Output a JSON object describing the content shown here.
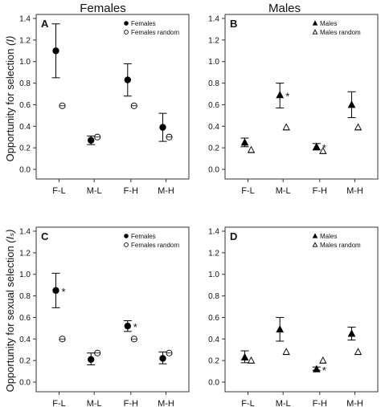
{
  "column_titles": [
    "Females",
    "Males"
  ],
  "row_ylabels": [
    {
      "text": "Opportunity for selection",
      "symbol": "(I)"
    },
    {
      "text": "Opportunity for sexual selection",
      "symbol": "(Iₛ)"
    }
  ],
  "chart_data": [
    {
      "type": "scatter",
      "panel": "A",
      "sex": "female",
      "row": 0,
      "col": 0,
      "categories": [
        "F-L",
        "M-L",
        "F-H",
        "M-H"
      ],
      "ylim": [
        0,
        1.4
      ],
      "yticks": [
        0.0,
        0.2,
        0.4,
        0.6,
        0.8,
        1.0,
        1.2,
        1.4
      ],
      "legend": [
        "Females",
        "Females random"
      ],
      "legend_position": "top-right",
      "series": [
        {
          "name": "Females",
          "values": [
            1.1,
            0.27,
            0.83,
            0.39
          ],
          "lower": [
            0.85,
            0.23,
            0.68,
            0.26
          ],
          "upper": [
            1.35,
            0.31,
            0.98,
            0.52
          ]
        },
        {
          "name": "Females random",
          "values": [
            0.59,
            0.3,
            0.59,
            0.3
          ]
        }
      ],
      "significant": [
        false,
        false,
        false,
        false
      ]
    },
    {
      "type": "scatter",
      "panel": "B",
      "sex": "male",
      "row": 0,
      "col": 1,
      "categories": [
        "F-L",
        "M-L",
        "F-H",
        "M-H"
      ],
      "ylim": [
        0,
        1.4
      ],
      "yticks": [
        0.0,
        0.2,
        0.4,
        0.6,
        0.8,
        1.0,
        1.2,
        1.4
      ],
      "legend": [
        "Males",
        "Males random"
      ],
      "legend_position": "top-right",
      "series": [
        {
          "name": "Males",
          "values": [
            0.25,
            0.69,
            0.21,
            0.6
          ],
          "lower": [
            0.21,
            0.57,
            0.18,
            0.48
          ],
          "upper": [
            0.29,
            0.8,
            0.24,
            0.72
          ]
        },
        {
          "name": "Males random",
          "values": [
            0.18,
            0.39,
            0.17,
            0.39
          ]
        }
      ],
      "significant": [
        false,
        true,
        true,
        false
      ]
    },
    {
      "type": "scatter",
      "panel": "C",
      "sex": "female",
      "row": 1,
      "col": 0,
      "categories": [
        "F-L",
        "M-L",
        "F-H",
        "M-H"
      ],
      "ylim": [
        0,
        1.4
      ],
      "yticks": [
        0.0,
        0.2,
        0.4,
        0.6,
        0.8,
        1.0,
        1.2,
        1.4
      ],
      "legend": [
        "Females",
        "Females random"
      ],
      "legend_position": "top-right",
      "series": [
        {
          "name": "Females",
          "values": [
            0.85,
            0.21,
            0.52,
            0.22
          ],
          "lower": [
            0.69,
            0.16,
            0.47,
            0.17
          ],
          "upper": [
            1.01,
            0.27,
            0.57,
            0.28
          ]
        },
        {
          "name": "Females random",
          "values": [
            0.4,
            0.27,
            0.4,
            0.27
          ]
        }
      ],
      "significant": [
        true,
        false,
        true,
        false
      ]
    },
    {
      "type": "scatter",
      "panel": "D",
      "sex": "male",
      "row": 1,
      "col": 1,
      "categories": [
        "F-L",
        "M-L",
        "F-H",
        "M-H"
      ],
      "ylim": [
        0,
        1.4
      ],
      "yticks": [
        0.0,
        0.2,
        0.4,
        0.6,
        0.8,
        1.0,
        1.2,
        1.4
      ],
      "legend": [
        "Males",
        "Males random"
      ],
      "legend_position": "top-right",
      "series": [
        {
          "name": "Males",
          "values": [
            0.23,
            0.49,
            0.12,
            0.45
          ],
          "lower": [
            0.18,
            0.38,
            0.11,
            0.39
          ],
          "upper": [
            0.29,
            0.6,
            0.14,
            0.51
          ]
        },
        {
          "name": "Males random",
          "values": [
            0.2,
            0.28,
            0.2,
            0.28
          ]
        }
      ],
      "significant": [
        false,
        false,
        true,
        false
      ]
    }
  ]
}
